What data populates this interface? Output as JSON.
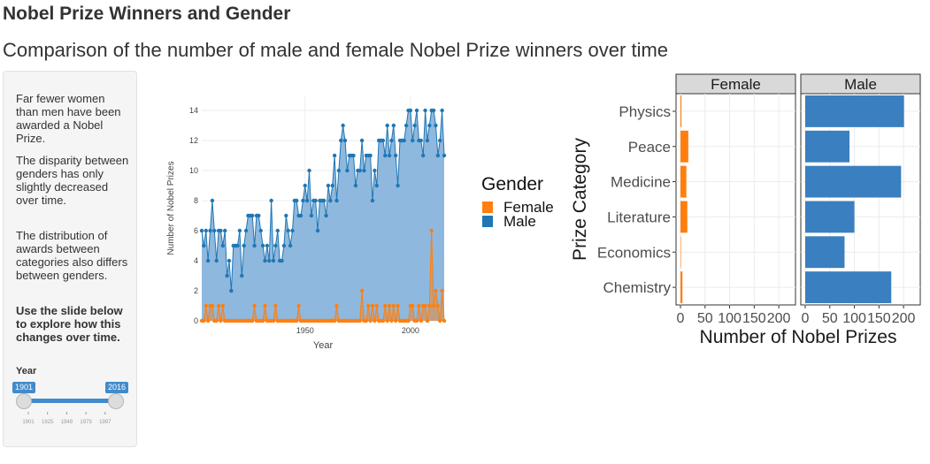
{
  "app": {
    "title": "Nobel Prize Winners and Gender",
    "subtitle": "Comparison of the number of male and female Nobel Prize winners over time"
  },
  "sidebar": {
    "paragraph1": "Far fewer women than men have been awarded a Nobel Prize.",
    "paragraph2": "The disparity between genders has only slightly decreased over time.",
    "paragraph3": "The distribution of awards between categories also differs between genders.",
    "instruction": "Use the slide below to explore how this changes over time.",
    "slider": {
      "label": "Year",
      "min": 1901,
      "max": 2016,
      "from": 1901,
      "to": 2016,
      "from_label": "1901",
      "to_label": "2016",
      "tick_labels": [
        "1901",
        "1925",
        "1949",
        "1973",
        "1997"
      ],
      "accent_color": "#428bca"
    }
  },
  "colors": {
    "female": "#ff7f0e",
    "male": "#1f77b4",
    "male_bar": "#3a7fbf",
    "female_bar": "#ff7f0e",
    "male_area": "#8fb8de"
  },
  "chart_data": [
    {
      "type": "area",
      "xlabel": "Year",
      "ylabel": "Number of Nobel Prizes",
      "xlim": [
        1901,
        2016
      ],
      "ylim": [
        0,
        15
      ],
      "x_ticks": [
        "1950",
        "2000"
      ],
      "y_ticks": [
        "0",
        "2",
        "4",
        "6",
        "8",
        "10",
        "12",
        "14"
      ],
      "legend": {
        "title": "Gender",
        "placement": "right"
      },
      "x_start": 1901,
      "series": [
        {
          "name": "Male",
          "values": [
            6,
            5,
            6,
            4,
            6,
            8,
            6,
            4,
            6,
            6,
            5,
            6,
            3,
            4,
            2,
            5,
            5,
            5,
            6,
            3,
            5,
            6,
            7,
            7,
            7,
            5,
            7,
            7,
            6,
            5,
            4,
            5,
            4,
            8,
            4,
            5,
            6,
            4,
            4,
            5,
            7,
            6,
            5,
            6,
            8,
            8,
            7,
            7,
            8,
            9,
            8,
            10,
            7,
            8,
            8,
            6,
            8,
            8,
            8,
            7,
            9,
            8,
            9,
            11,
            8,
            10,
            12,
            13,
            12,
            10,
            11,
            11,
            11,
            9,
            10,
            10,
            12,
            10,
            11,
            11,
            11,
            8,
            10,
            9,
            12,
            12,
            12,
            11,
            13,
            11,
            12,
            13,
            11,
            9,
            12,
            12,
            12,
            13,
            14,
            14,
            12,
            13,
            14,
            12,
            12,
            11,
            14,
            12,
            13,
            14,
            14,
            13,
            11,
            12,
            14,
            11
          ]
        },
        {
          "name": "Female",
          "values": [
            0,
            0,
            1,
            0,
            1,
            1,
            0,
            0,
            1,
            0,
            1,
            0,
            0,
            0,
            0,
            0,
            0,
            0,
            0,
            0,
            0,
            0,
            0,
            0,
            0,
            1,
            0,
            0,
            0,
            0,
            1,
            0,
            0,
            0,
            0,
            1,
            0,
            0,
            0,
            0,
            0,
            0,
            0,
            0,
            0,
            0,
            1,
            0,
            0,
            0,
            0,
            0,
            0,
            0,
            0,
            0,
            0,
            0,
            0,
            0,
            0,
            0,
            0,
            0,
            1,
            0,
            0,
            0,
            0,
            0,
            0,
            0,
            0,
            0,
            0,
            0,
            2,
            0,
            0,
            1,
            0,
            1,
            0,
            1,
            0,
            0,
            0,
            1,
            0,
            1,
            0,
            1,
            0,
            1,
            0,
            0,
            0,
            0,
            0,
            1,
            1,
            0,
            0,
            1,
            0,
            1,
            1,
            0,
            1,
            6,
            1,
            2,
            1,
            0,
            2,
            0
          ]
        }
      ]
    },
    {
      "type": "bar",
      "orientation": "horizontal",
      "ylabel": "Prize Category",
      "xlabel": "Number of Nobel Prizes",
      "x_ticks": [
        "0",
        "50",
        "100",
        "150",
        "200"
      ],
      "xlim": [
        0,
        225
      ],
      "facets": [
        "Female",
        "Male"
      ],
      "categories": [
        "Physics",
        "Peace",
        "Medicine",
        "Literature",
        "Economics",
        "Chemistry"
      ],
      "series": [
        {
          "name": "Female",
          "values": [
            2,
            16,
            12,
            14,
            1,
            4
          ]
        },
        {
          "name": "Male",
          "values": [
            201,
            90,
            195,
            100,
            80,
            175
          ]
        }
      ]
    }
  ]
}
